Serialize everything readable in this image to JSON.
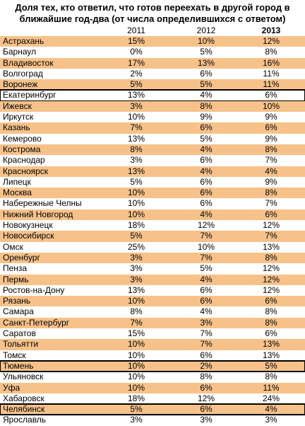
{
  "chart_data": {
    "type": "table",
    "title": "Доля тех, кто ответил, что готов переехать в другой город в ближайшие год-два (от числа определившихся с ответом)",
    "columns": [
      "2011",
      "2012",
      "2013"
    ],
    "rows": [
      {
        "city": "Астрахань",
        "values": [
          "15%",
          "10%",
          "12%"
        ],
        "highlight": "orange"
      },
      {
        "city": "Барнаул",
        "values": [
          "0%",
          "5%",
          "8%"
        ]
      },
      {
        "city": "Владивосток",
        "values": [
          "17%",
          "13%",
          "16%"
        ],
        "highlight": "orange"
      },
      {
        "city": "Волгоград",
        "values": [
          "2%",
          "6%",
          "11%"
        ]
      },
      {
        "city": "Воронеж",
        "values": [
          "5%",
          "5%",
          "11%"
        ],
        "highlight": "orange"
      },
      {
        "city": "Екатеринбург",
        "values": [
          "13%",
          "4%",
          "6%"
        ],
        "boxed": true
      },
      {
        "city": "Ижевск",
        "values": [
          "3%",
          "8%",
          "10%"
        ],
        "highlight": "orange"
      },
      {
        "city": "Иркутск",
        "values": [
          "10%",
          "9%",
          "9%"
        ]
      },
      {
        "city": "Казань",
        "values": [
          "7%",
          "6%",
          "6%"
        ],
        "highlight": "orange"
      },
      {
        "city": "Кемерово",
        "values": [
          "13%",
          "5%",
          "9%"
        ]
      },
      {
        "city": "Кострома",
        "values": [
          "8%",
          "4%",
          "8%"
        ],
        "highlight": "orange"
      },
      {
        "city": "Краснодар",
        "values": [
          "3%",
          "6%",
          "7%"
        ]
      },
      {
        "city": "Красноярск",
        "values": [
          "13%",
          "4%",
          "4%"
        ],
        "highlight": "orange"
      },
      {
        "city": "Липецк",
        "values": [
          "5%",
          "6%",
          "9%"
        ]
      },
      {
        "city": "Москва",
        "values": [
          "10%",
          "6%",
          "8%"
        ],
        "highlight": "orange"
      },
      {
        "city": "Набережные Челны",
        "values": [
          "10%",
          "6%",
          "7%"
        ]
      },
      {
        "city": "Нижний Новгород",
        "values": [
          "10%",
          "4%",
          "6%"
        ],
        "highlight": "orange"
      },
      {
        "city": "Новокузнецк",
        "values": [
          "18%",
          "12%",
          "12%"
        ]
      },
      {
        "city": "Новосибирск",
        "values": [
          "5%",
          "7%",
          "7%"
        ],
        "highlight": "orange"
      },
      {
        "city": "Омск",
        "values": [
          "25%",
          "10%",
          "13%"
        ]
      },
      {
        "city": "Оренбург",
        "values": [
          "3%",
          "7%",
          "8%"
        ],
        "highlight": "orange"
      },
      {
        "city": "Пенза",
        "values": [
          "3%",
          "5%",
          "12%"
        ]
      },
      {
        "city": "Пермь",
        "values": [
          "3%",
          "4%",
          "12%"
        ],
        "highlight": "orange"
      },
      {
        "city": "Ростов-на-Дону",
        "values": [
          "13%",
          "6%",
          "12%"
        ]
      },
      {
        "city": "Рязань",
        "values": [
          "10%",
          "6%",
          "6%"
        ],
        "highlight": "orange"
      },
      {
        "city": "Самара",
        "values": [
          "8%",
          "4%",
          "8%"
        ]
      },
      {
        "city": "Санкт-Петербург",
        "values": [
          "7%",
          "3%",
          "8%"
        ],
        "highlight": "orange"
      },
      {
        "city": "Саратов",
        "values": [
          "15%",
          "7%",
          "6%"
        ]
      },
      {
        "city": "Тольятти",
        "values": [
          "10%",
          "7%",
          "13%"
        ],
        "highlight": "orange"
      },
      {
        "city": "Томск",
        "values": [
          "10%",
          "6%",
          "13%"
        ]
      },
      {
        "city": "Тюмень",
        "values": [
          "10%",
          "2%",
          "5%"
        ],
        "highlight": "orange",
        "boxed": true
      },
      {
        "city": "Ульяновск",
        "values": [
          "10%",
          "8%",
          "8%"
        ]
      },
      {
        "city": "Уфа",
        "values": [
          "10%",
          "6%",
          "11%"
        ],
        "highlight": "orange"
      },
      {
        "city": "Хабаровск",
        "values": [
          "18%",
          "12%",
          "24%"
        ]
      },
      {
        "city": "Челябинск",
        "values": [
          "5%",
          "6%",
          "4%"
        ],
        "highlight": "orange",
        "boxed": true
      },
      {
        "city": "Ярославль",
        "values": [
          "3%",
          "3%",
          "3%"
        ]
      }
    ]
  }
}
